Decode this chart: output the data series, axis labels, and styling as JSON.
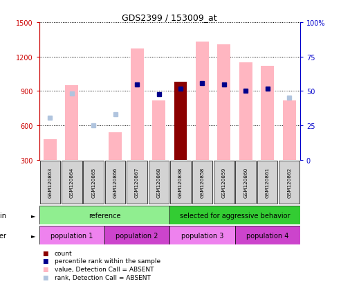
{
  "title": "GDS2399 / 153009_at",
  "samples": [
    "GSM120863",
    "GSM120864",
    "GSM120865",
    "GSM120866",
    "GSM120867",
    "GSM120868",
    "GSM120838",
    "GSM120858",
    "GSM120859",
    "GSM120860",
    "GSM120861",
    "GSM120862"
  ],
  "bar_heights_pink": [
    480,
    950,
    80,
    540,
    1270,
    820,
    0,
    1330,
    1310,
    1150,
    1120,
    820
  ],
  "bar_heights_darkred": [
    0,
    0,
    0,
    0,
    0,
    0,
    980,
    0,
    0,
    0,
    0,
    0
  ],
  "rank_dots_blue": [
    null,
    null,
    null,
    null,
    960,
    870,
    920,
    970,
    960,
    900,
    920,
    null
  ],
  "rank_dots_lightblue": [
    670,
    880,
    600,
    700,
    null,
    null,
    null,
    null,
    null,
    null,
    null,
    840
  ],
  "ylim_left": [
    300,
    1500
  ],
  "ylim_right": [
    0,
    100
  ],
  "yticks_left": [
    300,
    600,
    900,
    1200,
    1500
  ],
  "yticks_right": [
    0,
    25,
    50,
    75,
    100
  ],
  "left_axis_color": "#cc0000",
  "right_axis_color": "#0000cc",
  "strain_ref_color": "#90ee90",
  "strain_agg_color": "#33cc33",
  "pop1_color": "#ee82ee",
  "pop2_color": "#cc44cc",
  "pop3_color": "#ee82ee",
  "pop4_color": "#cc44cc",
  "strain_row": [
    {
      "label": "reference",
      "color": "#90ee90",
      "span": [
        0,
        6
      ]
    },
    {
      "label": "selected for aggressive behavior",
      "color": "#33cc33",
      "span": [
        6,
        12
      ]
    }
  ],
  "other_row": [
    {
      "label": "population 1",
      "color": "#ee82ee",
      "span": [
        0,
        3
      ]
    },
    {
      "label": "population 2",
      "color": "#cc44cc",
      "span": [
        3,
        6
      ]
    },
    {
      "label": "population 3",
      "color": "#ee82ee",
      "span": [
        6,
        9
      ]
    },
    {
      "label": "population 4",
      "color": "#cc44cc",
      "span": [
        9,
        12
      ]
    }
  ],
  "legend_items": [
    {
      "color": "#8b0000",
      "label": "count"
    },
    {
      "color": "#00008b",
      "label": "percentile rank within the sample"
    },
    {
      "color": "#ffb6c1",
      "label": "value, Detection Call = ABSENT"
    },
    {
      "color": "#b0c4de",
      "label": "rank, Detection Call = ABSENT"
    }
  ],
  "pink_bar_color": "#ffb6c1",
  "darkred_bar_color": "#8b0000",
  "blue_dot_color": "#00008b",
  "lightblue_dot_color": "#b0c4de",
  "sample_box_color": "#d3d3d3",
  "border_color": "#000000"
}
